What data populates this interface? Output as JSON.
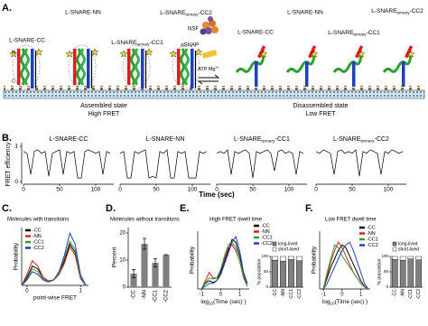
{
  "panel_a": {
    "label": "A.",
    "left_labels": [
      "L-SNARE-CC",
      "L-SNARE-NN",
      {
        "main": "L-SNARE",
        "sub": "ternary",
        "tail": "-CC1"
      },
      {
        "main": "L-SNARE",
        "sub": "ternary",
        "tail": "-CC2"
      }
    ],
    "right_labels": [
      "L-SNARE-CC",
      "L-SNARE-NN",
      {
        "main": "L-SNARE",
        "sub": "ternary",
        "tail": "-CC1"
      },
      {
        "main": "L-SNARE",
        "sub": "ternary",
        "tail": "-CC2"
      }
    ],
    "termini": [
      "N",
      "C"
    ],
    "nsf": "NSF",
    "snap": "αSNAP",
    "atp": {
      "main": "ATP Mg",
      "sup": "2+"
    },
    "left_state": [
      "Assembled state",
      "High FRET"
    ],
    "right_state": [
      "Disassembled state",
      "Low FRET"
    ]
  },
  "chart_data": [
    {
      "type": "trace",
      "label": "B.",
      "ylabel": "FRET efficiency",
      "xlabel": "Time (sec)",
      "xlim": [
        0,
        125
      ],
      "xticks": [
        0,
        50,
        100
      ],
      "ylim": [
        -0.05,
        1.05
      ],
      "yticks": [
        0,
        1
      ],
      "x": [
        0,
        5,
        10,
        15,
        20,
        25,
        30,
        35,
        40,
        45,
        50,
        55,
        60,
        65,
        70,
        75,
        80,
        85,
        90,
        95,
        100,
        105,
        110,
        115,
        120
      ],
      "series": [
        {
          "name": "L-SNARE-CC",
          "color": "#000000",
          "values": [
            0.85,
            0.8,
            0.2,
            0.85,
            0.9,
            0.8,
            0.85,
            0.15,
            0.8,
            0.85,
            0.9,
            0.2,
            0.85,
            0.8,
            0.85,
            0.1,
            0.1,
            0.85,
            0.9,
            0.85,
            0.8,
            0.85,
            0.2,
            0.85,
            0.8
          ]
        },
        {
          "name": "L-SNARE-NN",
          "color": "#000000",
          "values": [
            0.8,
            0.85,
            0.1,
            0.1,
            0.85,
            0.8,
            0.85,
            0.9,
            0.1,
            0.15,
            0.1,
            0.85,
            0.8,
            0.9,
            0.1,
            0.1,
            0.85,
            0.8,
            0.85,
            0.1,
            0.1,
            0.1,
            0.85,
            0.8,
            0.85
          ]
        },
        {
          "name": {
            "main": "L-SNARE",
            "sub": "ternary",
            "tail": "-CC1"
          },
          "color": "#000000",
          "values": [
            0.8,
            0.85,
            0.8,
            0.9,
            0.2,
            0.85,
            0.8,
            0.85,
            0.9,
            0.8,
            0.1,
            0.85,
            0.8,
            0.85,
            0.9,
            0.8,
            0.3,
            0.85,
            0.9,
            0.8,
            0.85,
            0.8,
            0.2,
            0.85,
            0.8
          ]
        },
        {
          "name": {
            "main": "L-SNARE",
            "sub": "ternary",
            "tail": "-CC2"
          },
          "color": "#000000",
          "values": [
            0.85,
            0.8,
            0.9,
            0.85,
            0.8,
            0.2,
            0.85,
            0.9,
            0.8,
            0.85,
            0.8,
            0.9,
            0.15,
            0.85,
            0.8,
            0.9,
            0.85,
            0.8,
            0.2,
            0.85,
            0.8,
            0.9,
            0.85,
            0.8,
            0.85
          ]
        }
      ]
    },
    {
      "type": "line",
      "label": "C.",
      "title": "Molecules with transitions",
      "ylabel": "Probability",
      "xlabel": "point-wise FRET",
      "xlim": [
        -0.1,
        1.15
      ],
      "xticks": [
        0,
        1
      ],
      "ylim": [
        0,
        1.05
      ],
      "x": [
        -0.1,
        0,
        0.1,
        0.2,
        0.3,
        0.4,
        0.5,
        0.6,
        0.7,
        0.8,
        0.9,
        1,
        1.1
      ],
      "series": [
        {
          "name": "-CC",
          "color": "#000000",
          "values": [
            0,
            0.15,
            0.35,
            0.3,
            0.15,
            0.08,
            0.1,
            0.2,
            0.45,
            0.75,
            0.6,
            0.15,
            0
          ]
        },
        {
          "name": "-NN",
          "color": "#e41a1c",
          "values": [
            0,
            0.2,
            0.45,
            0.35,
            0.15,
            0.08,
            0.1,
            0.2,
            0.4,
            0.7,
            0.55,
            0.12,
            0
          ]
        },
        {
          "name": "-CC1",
          "color": "#2ca02c",
          "values": [
            0,
            0.12,
            0.3,
            0.25,
            0.12,
            0.07,
            0.1,
            0.22,
            0.5,
            0.8,
            0.65,
            0.15,
            0
          ]
        },
        {
          "name": "-CC2",
          "color": "#1f3fbf",
          "values": [
            0,
            0.1,
            0.25,
            0.2,
            0.1,
            0.06,
            0.1,
            0.25,
            0.55,
            0.95,
            0.75,
            0.2,
            0
          ]
        }
      ]
    },
    {
      "type": "bar",
      "label": "D.",
      "title": "Molecules without transitions",
      "ylabel": "Percent",
      "categories": [
        "-CC",
        "-NN",
        "-CC1",
        "-CC2"
      ],
      "values": [
        5,
        16,
        9,
        12
      ],
      "errors": [
        1.5,
        2,
        1.5,
        0
      ],
      "color": "#808080",
      "ylim": [
        0,
        22
      ],
      "yticks": [
        0,
        10,
        20
      ]
    },
    {
      "type": "line",
      "label": "E.",
      "title": "High FRET dwell time",
      "ylabel": "Probability",
      "xlabel": {
        "main": "log",
        "sub": "10",
        "tail": "(Time (sec) )"
      },
      "xlim": [
        -1.2,
        1.5
      ],
      "xticks": [
        -1,
        0,
        1
      ],
      "ylim": [
        0,
        1.05
      ],
      "x": [
        -1,
        -0.8,
        -0.6,
        -0.4,
        -0.2,
        0,
        0.2,
        0.4,
        0.6,
        0.8,
        1,
        1.2,
        1.4
      ],
      "series": [
        {
          "name": "-CC",
          "color": "#000000",
          "values": [
            0,
            0.1,
            0.15,
            0.12,
            0.15,
            0.3,
            0.5,
            0.7,
            0.9,
            0.85,
            0.6,
            0.3,
            0.1
          ]
        },
        {
          "name": "-NN",
          "color": "#e41a1c",
          "values": [
            0,
            0.15,
            0.3,
            0.2,
            0.2,
            0.35,
            0.55,
            0.75,
            0.8,
            0.7,
            0.5,
            0.25,
            0.05
          ]
        },
        {
          "name": "-CC1",
          "color": "#2ca02c",
          "values": [
            0,
            0.12,
            0.2,
            0.18,
            0.2,
            0.35,
            0.6,
            0.8,
            0.85,
            0.75,
            0.5,
            0.2,
            0.05
          ]
        },
        {
          "name": "-CC2",
          "color": "#1f3fbf",
          "values": [
            0,
            0.05,
            0.1,
            0.1,
            0.15,
            0.25,
            0.45,
            0.65,
            0.85,
            0.95,
            0.7,
            0.3,
            0.1
          ]
        }
      ],
      "inset": {
        "ylabel": "% population",
        "categories": [
          "-CC",
          "-NN",
          "-CC1",
          "-CC2"
        ],
        "ylim": [
          0,
          100
        ],
        "yticks": [
          0,
          50,
          100
        ],
        "series": [
          {
            "name": "long-lived",
            "color": "#808080",
            "values": [
              88,
              85,
              90,
              86
            ]
          },
          {
            "name": "short-lived",
            "color": "#ffffff",
            "values": [
              12,
              15,
              10,
              14
            ]
          }
        ]
      }
    },
    {
      "type": "line",
      "label": "F.",
      "title": "Low FRET dwell time",
      "ylabel": "Probability",
      "xlabel": {
        "main": "log",
        "sub": "10",
        "tail": "(Time (sec) )"
      },
      "xlim": [
        -1.2,
        1.5
      ],
      "xticks": [
        -1,
        0,
        1
      ],
      "ylim": [
        0,
        1.05
      ],
      "x": [
        -1,
        -0.8,
        -0.6,
        -0.4,
        -0.2,
        0,
        0.2,
        0.4,
        0.6,
        0.8,
        1,
        1.2,
        1.4
      ],
      "series": [
        {
          "name": "-CC",
          "color": "#000000",
          "values": [
            0,
            0.2,
            0.4,
            0.55,
            0.7,
            0.8,
            0.75,
            0.6,
            0.45,
            0.3,
            0.15,
            0.05,
            0
          ]
        },
        {
          "name": "-NN",
          "color": "#e41a1c",
          "values": [
            0,
            0.25,
            0.5,
            0.7,
            0.85,
            0.75,
            0.6,
            0.45,
            0.3,
            0.2,
            0.1,
            0.05,
            0
          ]
        },
        {
          "name": "-CC1",
          "color": "#2ca02c",
          "values": [
            0,
            0.3,
            0.55,
            0.8,
            0.75,
            0.6,
            0.5,
            0.4,
            0.3,
            0.2,
            0.1,
            0.03,
            0
          ]
        },
        {
          "name": "-CC2",
          "color": "#1f3fbf",
          "values": [
            0,
            0.1,
            0.25,
            0.4,
            0.55,
            0.7,
            0.8,
            0.85,
            0.7,
            0.5,
            0.3,
            0.1,
            0
          ]
        }
      ],
      "inset": {
        "ylabel": "% population",
        "categories": [
          "-CC",
          "-NN",
          "-CC1",
          "-CC2"
        ],
        "ylim": [
          0,
          100
        ],
        "yticks": [
          0,
          50,
          100
        ],
        "series": [
          {
            "name": "long-lived",
            "color": "#808080",
            "values": [
              90,
              88,
              92,
              89
            ]
          },
          {
            "name": "short-lived",
            "color": "#ffffff",
            "values": [
              10,
              12,
              8,
              11
            ]
          }
        ]
      }
    }
  ]
}
